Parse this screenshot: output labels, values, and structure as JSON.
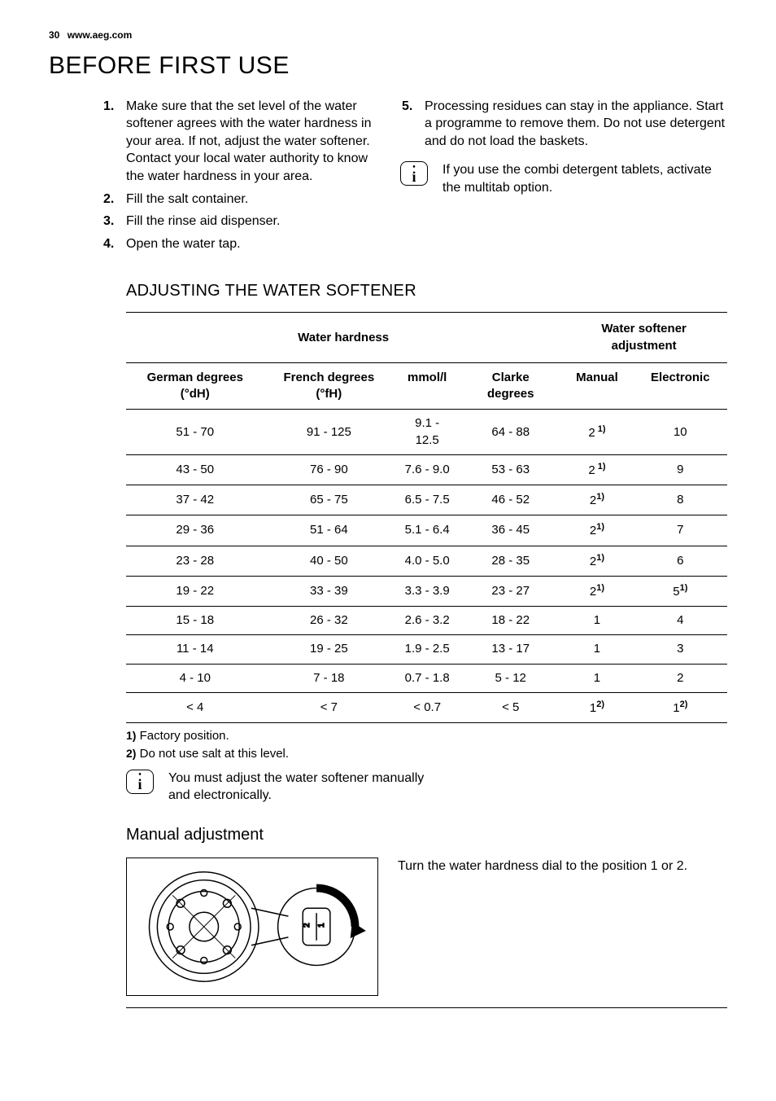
{
  "header": {
    "page_number": "30",
    "site": "www.aeg.com"
  },
  "title": "BEFORE FIRST USE",
  "steps_left": [
    {
      "n": "1.",
      "t": "Make sure that the set level of the water softener agrees with the water hardness in your area. If not, adjust the water softener. Contact your local water authority to know the water hardness in your area."
    },
    {
      "n": "2.",
      "t": "Fill the salt container."
    },
    {
      "n": "3.",
      "t": "Fill the rinse aid dispenser."
    },
    {
      "n": "4.",
      "t": "Open the water tap."
    }
  ],
  "steps_right": [
    {
      "n": "5.",
      "t": "Processing residues can stay in the appliance. Start a programme to remove them. Do not use detergent and do not load the baskets."
    }
  ],
  "info_right": "If you use the combi detergent tablets, activate the multitab option.",
  "section_title": "ADJUSTING THE WATER SOFTENER",
  "table": {
    "group_headers": [
      "Water hardness",
      "Water softener adjustment"
    ],
    "group_spans": [
      4,
      2
    ],
    "col_headers": [
      "German degrees (°dH)",
      "French degrees (°fH)",
      "mmol/l",
      "Clarke degrees",
      "Manual",
      "Electronic"
    ],
    "rows": [
      [
        "51 - 70",
        "91 - 125",
        "9.1 - 12.5",
        "64 - 88",
        {
          "v": "2",
          "s": " 1)"
        },
        "10"
      ],
      [
        "43 - 50",
        "76 - 90",
        "7.6 - 9.0",
        "53 - 63",
        {
          "v": "2",
          "s": " 1)"
        },
        "9"
      ],
      [
        "37 - 42",
        "65 - 75",
        "6.5 - 7.5",
        "46 - 52",
        {
          "v": "2",
          "s": "1)"
        },
        "8"
      ],
      [
        "29 - 36",
        "51 - 64",
        "5.1 - 6.4",
        "36 - 45",
        {
          "v": "2",
          "s": "1)"
        },
        "7"
      ],
      [
        "23 - 28",
        "40 - 50",
        "4.0 - 5.0",
        "28 - 35",
        {
          "v": "2",
          "s": "1)"
        },
        "6"
      ],
      [
        "19 - 22",
        "33 - 39",
        "3.3 - 3.9",
        "23 - 27",
        {
          "v": "2",
          "s": "1)"
        },
        {
          "v": "5",
          "s": "1)"
        }
      ],
      [
        "15 - 18",
        "26 - 32",
        "2.6 - 3.2",
        "18 - 22",
        "1",
        "4"
      ],
      [
        "11 - 14",
        "19 - 25",
        "1.9 - 2.5",
        "13 - 17",
        "1",
        "3"
      ],
      [
        "4 - 10",
        "7 - 18",
        "0.7 - 1.8",
        "5 - 12",
        "1",
        "2"
      ],
      [
        "< 4",
        "< 7",
        "< 0.7",
        "< 5",
        {
          "v": "1",
          "s": "2)"
        },
        {
          "v": "1",
          "s": "2)"
        }
      ]
    ]
  },
  "footnotes": [
    {
      "n": "1)",
      "t": " Factory position."
    },
    {
      "n": "2)",
      "t": " Do not use salt at this level."
    }
  ],
  "info_below": "You must adjust the water softener manually and electronically.",
  "manual": {
    "heading": "Manual adjustment",
    "text": "Turn the water hardness dial to the position 1 or 2."
  }
}
